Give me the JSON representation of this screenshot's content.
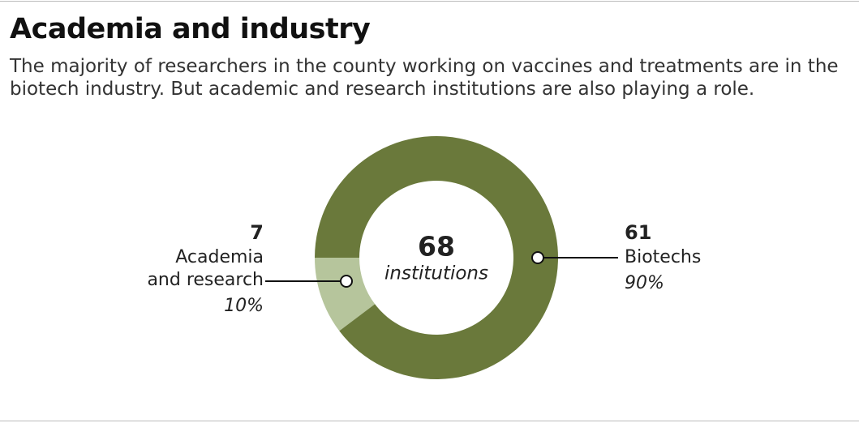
{
  "chart_data": {
    "type": "donut",
    "title": "Academia and industry",
    "subtitle": "The majority of researchers in the county working on vaccines and treatments are in the biotech industry. But academic and research institutions are also playing a role.",
    "categories": [
      "Academia\nand research",
      "Biotechs"
    ],
    "values": [
      7,
      61
    ],
    "percent_labels": [
      "10%",
      "90%"
    ],
    "colors": [
      "#b6c59c",
      "#6a793b"
    ],
    "center_value": 68,
    "center_label": "institutions"
  }
}
